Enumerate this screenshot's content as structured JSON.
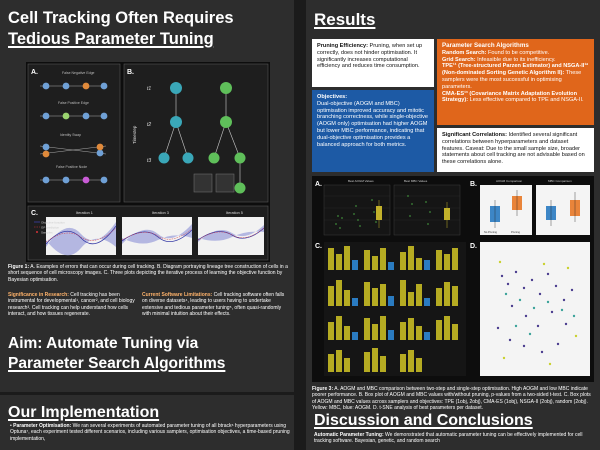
{
  "left": {
    "title_line1": "Cell Tracking Often Requires",
    "title_line2": "Tedious Parameter Tuning",
    "fig1": {
      "a_label": "A.",
      "b_label": "B.",
      "c_label": "C.",
      "a_items": [
        "False Negative Edge",
        "False Positive Edge",
        "Identity Swap",
        "False Positive Node"
      ],
      "b_time_label": "Timestep",
      "b_timesteps": [
        "t1",
        "t2",
        "t3"
      ],
      "c_titles": [
        "Iteration 1",
        "Iteration 3",
        "Iteration 5"
      ],
      "c_legend": [
        "Objective function",
        "GP prediction",
        "Samples"
      ]
    },
    "figure_caption_bold": "Figure 1:",
    "figure_caption": " A. Examples of errors that can occur during cell tracking. B. Diagram portraying lineage tree construction of cells in a short sequence of cell microscopy images. C. Three plots depicting the iterative process of learning the objective function by Bayesian optimisation.",
    "significance_bold": "Significance in Research:",
    "significance_text": " Cell tracking has been instrumental for developmental¹, cancer², and cell biology research³. Cell tracking can help understand how cells interact, and how tissues regenerate.",
    "limitations_bold": "Current Software Limitations:",
    "limitations_text": " Cell tracking software often falls on diverse datasets⁴, leading to users having to undertake extensive and tedious parameter tuning⁵, often quasi-randomly with minimal intuition about their effects.",
    "aim_line1": "Aim: Automate Tuning via",
    "aim_line2": "Parameter Search Algorithms",
    "impl_title": "Our Implementation",
    "impl_bold": "Parameter Optimisation:",
    "impl_text": " We ran several experiments of automated parameter tuning of all btrack⁶ hyperparameters using Optuna⁷, each experiment tested different scenarios, including various samplers, optimisation objectives, a time-based pruning implementation,"
  },
  "right": {
    "results_title": "Results",
    "pruning_bold": "Pruning Efficiency:",
    "pruning_text": " Pruning, when set up correctly, does not hinder optimisation. It significantly increases computational efficiency and reduces time consumption.",
    "objectives_bold": "Objectives:",
    "objectives_text": "Dual-objective (AOGM and MBC) optimisation improved accuracy and mitotic branching correctness, while single-objective (AOGM only) optimisation had higher AOGM but lower MBC performance, indicating that dual-objective optimisation provides a balanced approach for both metrics.",
    "search_title": "Parameter Search Algorithms",
    "search_items": [
      {
        "bold": "Random Search:",
        "text": " Found to be competitive."
      },
      {
        "bold": "Grid Search:",
        "text": " Infeasible due to its inefficiency."
      },
      {
        "bold": "TPE¹¹ (Tree-structured Parzen Estimator) and NSGA-II¹² (Non-dominated Sorting Genetic Algorithm II):",
        "text": " These samplers were the most successful in optimising parameters."
      },
      {
        "bold": "CMA-ES¹³ (Covariance Matrix Adaptation Evolution Strategy):",
        "text": " Less effective compared to TPE and NSGA-II."
      }
    ],
    "correlations_bold": "Significant Correlations:",
    "correlations_text": " Identified several significant correlations between hyperparameters and dataset features. Caveat: Due to the small sample size, broader statements about cell tracking are not advisable based on these correlations alone.",
    "fig3": {
      "a_label": "A.",
      "b_label": "B.",
      "c_label": "C.",
      "d_label": "D.",
      "a_plot_titles": [
        "Best AOGM Values",
        "Best MBC Values",
        "AOGM Comparison",
        "MBC Comparison"
      ],
      "a_xticks": [
        "Single-step",
        "Two-step",
        "No Pruning",
        "Pruning"
      ]
    },
    "fig3_caption_bold": "Figure 3:",
    "fig3_caption": " A. AOGM and MBC comparison between two-step and single-step optimisation. High AOGM and low MBC indicate poorer performance. B. Box plot of AOGM and MBC values with/without pruning, p-values from a two-sided t-test. C. Box plots of AOGM and MBC values across samplers and objectives: TPE (1obj, 2obj), CMA-ES (1obj), NSGA-II (2obj), random (2obj). Yellow: MBC, blue: AOGM. D. t-SNE analysis of best parameters per dataset.",
    "discussion_title": "Discussion and Conclusions",
    "discussion_bold": "Automatic Parameter Tuning:",
    "discussion_text": " We demonstrated that automatic parameter tuning can be effectively implemented for cell tracking software. Bayesian, genetic, and random search"
  },
  "colors": {
    "orange": "#e0661b",
    "blue": "#1d5aa5",
    "background": "#2d2d2d",
    "olive": "#a8a21f",
    "teal": "#3ca39a"
  }
}
